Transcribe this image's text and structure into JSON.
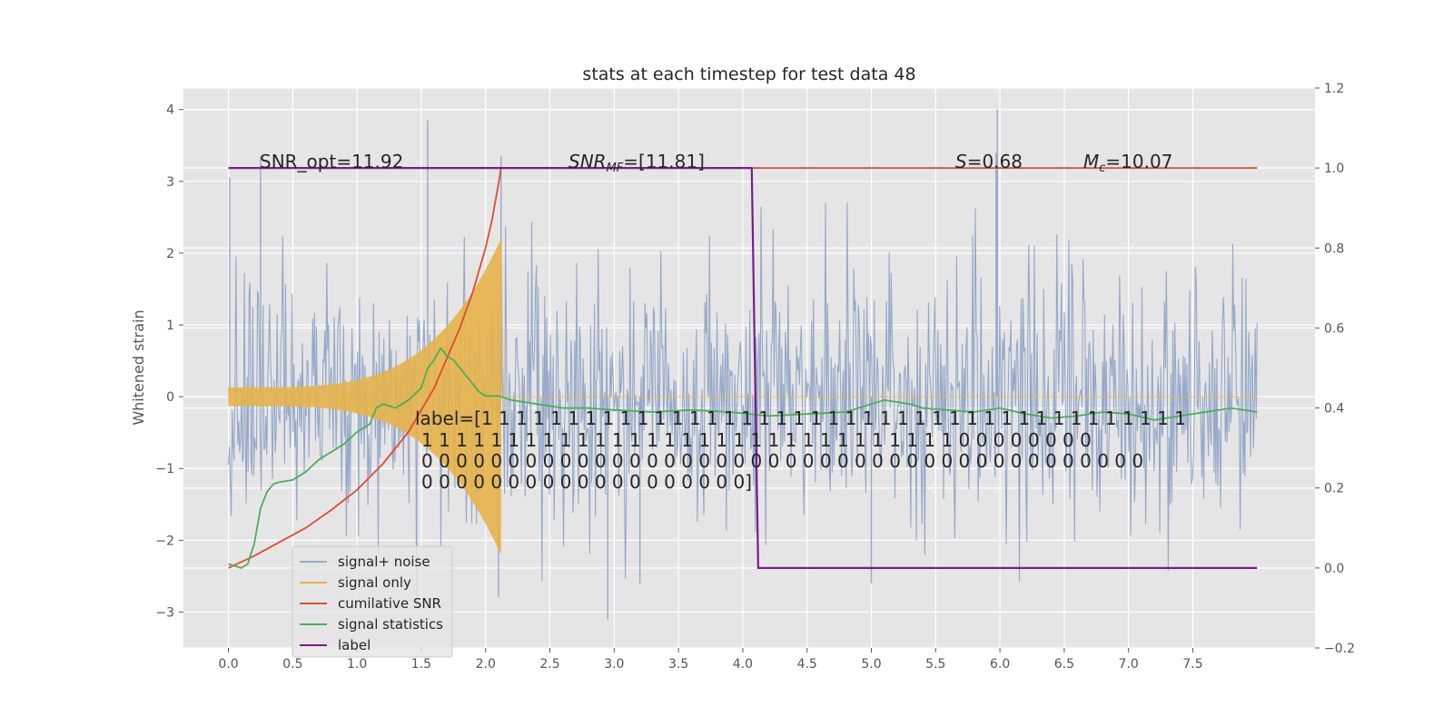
{
  "chart_data": {
    "type": "line",
    "title": "stats at each timestep for test data 48",
    "xlabel": "",
    "ylabel": "Whitened strain",
    "y2label": "",
    "xlim": [
      -0.35,
      8.45
    ],
    "ylim": [
      -3.5,
      4.3
    ],
    "y2lim": [
      -0.2,
      1.2
    ],
    "xticks": [
      "0.0",
      "0.5",
      "1.0",
      "1.5",
      "2.0",
      "2.5",
      "3.0",
      "3.5",
      "4.0",
      "4.5",
      "5.0",
      "5.5",
      "6.0",
      "6.5",
      "7.0",
      "7.5"
    ],
    "yticks": [
      "−3",
      "−2",
      "−1",
      "0",
      "1",
      "2",
      "3",
      "4"
    ],
    "y2ticks": [
      "−0.2",
      "0.0",
      "0.2",
      "0.4",
      "0.6",
      "0.8",
      "1.0",
      "1.2"
    ],
    "grid": true,
    "legend_position": "lower-left",
    "colors": {
      "noise": "#95a8c8",
      "signal": "#e6b34a",
      "snr": "#e24a33",
      "stat": "#4bae57",
      "label": "#7a1d8a",
      "plot_bg": "#e5e5e5"
    },
    "annotations": {
      "snr_opt": "SNR_opt=11.92",
      "snr_mf_name": "SNR",
      "snr_mf_sub": "MF",
      "snr_mf_value": "=[11.81]",
      "s_name": "S",
      "s_value": "=0.68",
      "mc_name": "M",
      "mc_sub": "c",
      "mc_value": "=10.07",
      "label_lines": [
        "label=[1 1 1 1 1 1 1 1 1 1 1 1 1 1 1 1 1 1 1 1 1 1 1 1 1 1 1 1 1 1 1 1 1 1 1 1 1 1 1 1 1",
        "1 1 1 1 1 1 1 1 1 1 1 1 1 1 1 1 1 1 1 1 1 1 1 1 1 1 1 1 1 1 1 0 0 0 0 0 0 0 0",
        "0 0 0 0 0 0 0 0 0 0 0 0 0 0 0 0 0 0 0 0 0 0 0 0 0 0 0 0 0 0 0 0 0 0 0 0 0 0 0 0 0 0",
        "0 0 0 0 0 0 0 0 0 0 0 0 0 0 0 0 0 0 0]"
      ]
    },
    "series": [
      {
        "name": "signal+ noise",
        "axis": "left",
        "duration": 8.0,
        "std": 0.85,
        "peaks": [
          [
            0.01,
            3.05
          ],
          [
            0.25,
            3.35
          ],
          [
            1.55,
            3.85
          ],
          [
            2.12,
            3.35
          ],
          [
            5.98,
            4.0
          ],
          [
            5.97,
            3.4
          ]
        ],
        "troughs": [
          [
            2.95,
            -3.1
          ],
          [
            2.1,
            -2.8
          ],
          [
            3.2,
            -2.6
          ],
          [
            5.0,
            -2.6
          ]
        ]
      },
      {
        "name": "signal only",
        "axis": "left",
        "t_merger": 2.12,
        "amp_start": 0.13,
        "amp_end": 2.2
      },
      {
        "name": "cumilative SNR",
        "axis": "right",
        "x": [
          0.0,
          0.2,
          0.4,
          0.6,
          0.8,
          1.0,
          1.2,
          1.4,
          1.6,
          1.8,
          1.9,
          2.0,
          2.05,
          2.1,
          2.12,
          2.5,
          3.0,
          4.0,
          5.0,
          6.0,
          7.0,
          8.0
        ],
        "y": [
          0.0,
          0.03,
          0.065,
          0.1,
          0.145,
          0.195,
          0.26,
          0.34,
          0.45,
          0.6,
          0.69,
          0.8,
          0.87,
          0.96,
          1.0,
          1.0,
          1.0,
          1.0,
          1.0,
          1.0,
          1.0,
          1.0
        ]
      },
      {
        "name": "signal statistics",
        "axis": "right",
        "x": [
          0.0,
          0.1,
          0.15,
          0.2,
          0.25,
          0.3,
          0.35,
          0.4,
          0.5,
          0.6,
          0.7,
          0.8,
          0.9,
          1.0,
          1.1,
          1.15,
          1.2,
          1.3,
          1.4,
          1.5,
          1.55,
          1.6,
          1.65,
          1.7,
          1.75,
          1.8,
          1.85,
          1.9,
          1.95,
          2.0,
          2.1,
          2.2,
          2.3,
          2.4,
          2.5,
          2.6,
          2.8,
          3.0,
          3.3,
          3.6,
          3.9,
          4.2,
          4.5,
          4.8,
          5.0,
          5.1,
          5.2,
          5.3,
          5.4,
          5.6,
          5.8,
          6.0,
          6.2,
          6.4,
          6.6,
          6.8,
          7.0,
          7.2,
          7.4,
          7.6,
          7.8,
          8.0
        ],
        "y": [
          0.01,
          0.0,
          0.01,
          0.06,
          0.15,
          0.19,
          0.21,
          0.215,
          0.22,
          0.24,
          0.27,
          0.29,
          0.31,
          0.34,
          0.36,
          0.4,
          0.41,
          0.4,
          0.42,
          0.45,
          0.5,
          0.52,
          0.55,
          0.53,
          0.52,
          0.5,
          0.48,
          0.46,
          0.44,
          0.43,
          0.43,
          0.42,
          0.415,
          0.41,
          0.405,
          0.4,
          0.4,
          0.395,
          0.39,
          0.395,
          0.39,
          0.38,
          0.385,
          0.39,
          0.41,
          0.42,
          0.415,
          0.41,
          0.4,
          0.395,
          0.39,
          0.4,
          0.385,
          0.375,
          0.38,
          0.39,
          0.385,
          0.37,
          0.38,
          0.39,
          0.4,
          0.39
        ]
      },
      {
        "name": "label",
        "axis": "right",
        "x": [
          0.0,
          4.07,
          4.12,
          8.0
        ],
        "y": [
          1.0,
          1.0,
          0.0,
          0.0
        ]
      }
    ],
    "legend": [
      {
        "label": "signal+ noise",
        "color": "#95a8c8"
      },
      {
        "label": "signal only",
        "color": "#e6b34a"
      },
      {
        "label": "cumilative SNR",
        "color": "#e24a33"
      },
      {
        "label": "signal statistics",
        "color": "#4bae57"
      },
      {
        "label": "label",
        "color": "#7a1d8a"
      }
    ]
  }
}
